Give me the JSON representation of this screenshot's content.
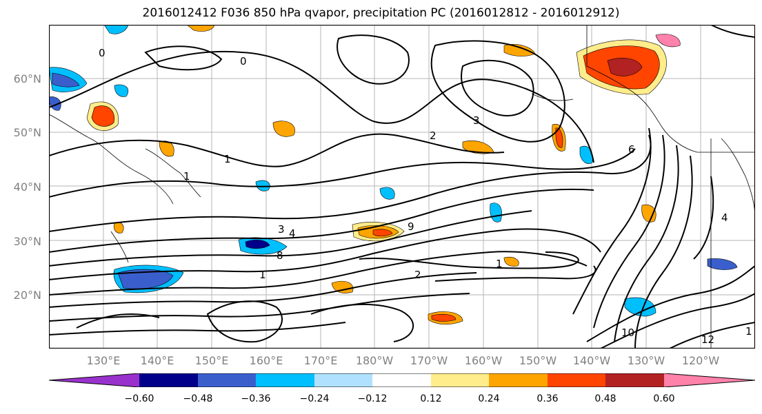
{
  "title": "2016012412 F036 850 hPa qvapor, precipitation PC (2016012812 - 2016012912)",
  "lat_labels": [
    "60°N",
    "50°N",
    "40°N",
    "30°N",
    "20°N"
  ],
  "lon_labels": [
    "130°E",
    "140°E",
    "150°E",
    "160°E",
    "170°E",
    "180°W",
    "170°W",
    "160°W",
    "150°W",
    "140°W",
    "130°W",
    "120°W"
  ],
  "contour_labels": [
    "0",
    "0",
    "1",
    "1",
    "2",
    "3",
    "3",
    "4",
    "6",
    "8",
    "1",
    "2",
    "1",
    "9",
    "10",
    "12",
    "1",
    "4"
  ],
  "colorbar": {
    "ticks": [
      "−0.60",
      "−0.48",
      "−0.36",
      "−0.24",
      "−0.12",
      "0.12",
      "0.24",
      "0.36",
      "0.48",
      "0.60"
    ],
    "colors": [
      "#9932cc",
      "#00008b",
      "#3a5fcd",
      "#00bfff",
      "#b0e2ff",
      "#ffffff",
      "#ffec8b",
      "#ffa500",
      "#ff4500",
      "#b22222",
      "#ff82ab"
    ]
  }
}
